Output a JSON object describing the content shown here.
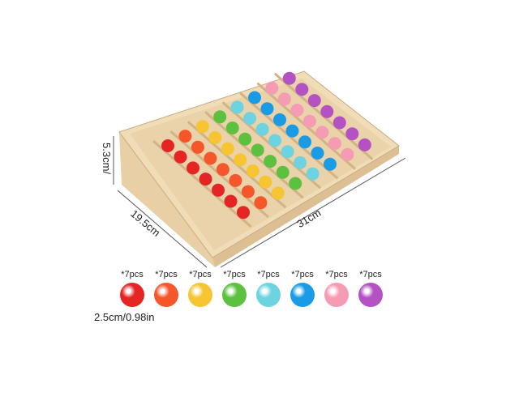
{
  "dimensions": {
    "height": "5.3cm/",
    "depth": "19.5cm",
    "width": "31cm"
  },
  "ball_size": "2.5cm/0.98in",
  "colors": [
    {
      "name": "red",
      "hex": "#e52424",
      "count": "*7pcs"
    },
    {
      "name": "orange",
      "hex": "#f5562a",
      "count": "*7pcs"
    },
    {
      "name": "yellow",
      "hex": "#f7c531",
      "count": "*7pcs"
    },
    {
      "name": "green",
      "hex": "#5cc13f",
      "count": "*7pcs"
    },
    {
      "name": "cyan",
      "hex": "#6ed3e0",
      "count": "*7pcs"
    },
    {
      "name": "blue",
      "hex": "#1a9be6",
      "count": "*7pcs"
    },
    {
      "name": "pink",
      "hex": "#f59bb3",
      "count": "*7pcs"
    },
    {
      "name": "purple",
      "hex": "#b452c4",
      "count": "*7pcs"
    }
  ],
  "balls_per_row": 7
}
